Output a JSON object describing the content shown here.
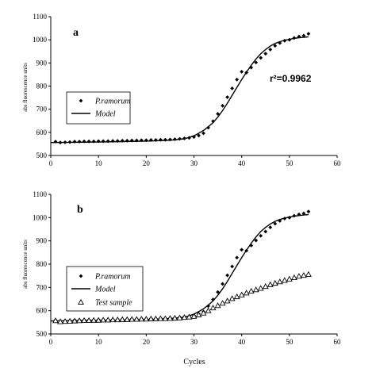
{
  "chart_data": [
    {
      "type": "scatter",
      "panel": "a",
      "ylabel": "abs fluorescence units",
      "xlabel": "",
      "xlim": [
        0,
        60
      ],
      "ylim": [
        500,
        1100
      ],
      "xticks": [
        "0",
        "10",
        "20",
        "30",
        "40",
        "50",
        "60"
      ],
      "yticks": [
        "500",
        "600",
        "700",
        "800",
        "900",
        "1000",
        "1100"
      ],
      "annotation": "r²=0.9962",
      "legend_position": "left-middle",
      "series": [
        {
          "name": "P.ramorum",
          "marker": "diamond",
          "x": [
            1,
            2,
            3,
            4,
            5,
            6,
            7,
            8,
            9,
            10,
            11,
            12,
            13,
            14,
            15,
            16,
            17,
            18,
            19,
            20,
            21,
            22,
            23,
            24,
            25,
            26,
            27,
            28,
            29,
            30,
            31,
            32,
            33,
            34,
            35,
            36,
            37,
            38,
            39,
            40,
            41,
            42,
            43,
            44,
            45,
            46,
            47,
            48,
            49,
            50,
            51,
            52,
            53,
            54
          ],
          "y": [
            560,
            556,
            557,
            558,
            560,
            560,
            561,
            561,
            561,
            562,
            562,
            562,
            563,
            563,
            564,
            564,
            565,
            565,
            566,
            566,
            567,
            567,
            568,
            568,
            569,
            570,
            572,
            574,
            576,
            580,
            586,
            596,
            620,
            648,
            680,
            715,
            752,
            790,
            828,
            862,
            858,
            880,
            902,
            922,
            940,
            958,
            974,
            986,
            996,
            1000,
            1008,
            1014,
            1018,
            1026
          ]
        },
        {
          "name": "Model",
          "marker": "line",
          "x": [
            0,
            5,
            10,
            15,
            20,
            25,
            28,
            30,
            31,
            32,
            33,
            34,
            35,
            36,
            37,
            38,
            39,
            40,
            41,
            42,
            43,
            44,
            45,
            46,
            47,
            48,
            49,
            50,
            51,
            52,
            53,
            54
          ],
          "y": [
            556,
            557,
            558,
            560,
            562,
            566,
            572,
            585,
            596,
            608,
            624,
            642,
            666,
            694,
            726,
            760,
            794,
            828,
            860,
            890,
            917,
            940,
            958,
            973,
            984,
            992,
            998,
            1002,
            1006,
            1009,
            1011,
            1013
          ]
        }
      ]
    },
    {
      "type": "scatter",
      "panel": "b",
      "ylabel": "abs fluorescence units",
      "xlabel": "Cycles",
      "xlim": [
        0,
        60
      ],
      "ylim": [
        500,
        1100
      ],
      "xticks": [
        "0",
        "10",
        "20",
        "30",
        "40",
        "50",
        "60"
      ],
      "yticks": [
        "500",
        "600",
        "700",
        "800",
        "900",
        "1000",
        "1100"
      ],
      "legend_position": "left-middle",
      "series": [
        {
          "name": "P.ramorum",
          "marker": "diamond",
          "x": [
            1,
            2,
            3,
            4,
            5,
            6,
            7,
            8,
            9,
            10,
            11,
            12,
            13,
            14,
            15,
            16,
            17,
            18,
            19,
            20,
            21,
            22,
            23,
            24,
            25,
            26,
            27,
            28,
            29,
            30,
            31,
            32,
            33,
            34,
            35,
            36,
            37,
            38,
            39,
            40,
            41,
            42,
            43,
            44,
            45,
            46,
            47,
            48,
            49,
            50,
            51,
            52,
            53,
            54
          ],
          "y": [
            560,
            556,
            557,
            558,
            560,
            560,
            561,
            561,
            561,
            562,
            562,
            562,
            563,
            563,
            564,
            564,
            565,
            565,
            566,
            566,
            567,
            567,
            568,
            568,
            569,
            570,
            572,
            574,
            576,
            580,
            586,
            596,
            620,
            648,
            680,
            715,
            752,
            790,
            828,
            862,
            858,
            880,
            902,
            922,
            940,
            958,
            974,
            986,
            996,
            1000,
            1008,
            1014,
            1018,
            1026
          ]
        },
        {
          "name": "Model",
          "marker": "line",
          "x": [
            0,
            5,
            10,
            15,
            20,
            25,
            28,
            30,
            31,
            32,
            33,
            34,
            35,
            36,
            37,
            38,
            39,
            40,
            41,
            42,
            43,
            44,
            45,
            46,
            47,
            48,
            49,
            50,
            51,
            52,
            53,
            54
          ],
          "y": [
            556,
            557,
            558,
            560,
            562,
            566,
            572,
            585,
            596,
            608,
            624,
            642,
            666,
            694,
            726,
            760,
            794,
            828,
            860,
            890,
            917,
            940,
            958,
            973,
            984,
            992,
            998,
            1002,
            1006,
            1009,
            1011,
            1013
          ]
        },
        {
          "name": "Test sample",
          "marker": "triangle",
          "x": [
            1,
            2,
            3,
            4,
            5,
            6,
            7,
            8,
            9,
            10,
            11,
            12,
            13,
            14,
            15,
            16,
            17,
            18,
            19,
            20,
            21,
            22,
            23,
            24,
            25,
            26,
            27,
            28,
            29,
            30,
            31,
            32,
            33,
            34,
            35,
            36,
            37,
            38,
            39,
            40,
            41,
            42,
            43,
            44,
            45,
            46,
            47,
            48,
            49,
            50,
            51,
            52,
            53,
            54
          ],
          "y": [
            557,
            553,
            554,
            555,
            556,
            557,
            558,
            558,
            559,
            559,
            560,
            560,
            561,
            561,
            562,
            562,
            563,
            563,
            564,
            564,
            565,
            565,
            566,
            566,
            567,
            568,
            569,
            571,
            573,
            576,
            582,
            590,
            600,
            612,
            622,
            632,
            642,
            652,
            660,
            668,
            676,
            684,
            690,
            696,
            704,
            712,
            718,
            724,
            730,
            736,
            742,
            748,
            752,
            756
          ]
        }
      ]
    }
  ]
}
